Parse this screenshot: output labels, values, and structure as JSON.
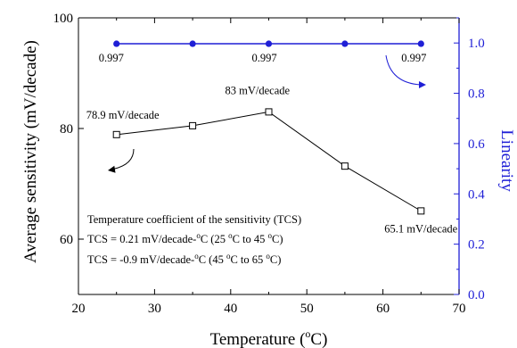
{
  "chart_data": {
    "type": "line",
    "x": [
      25,
      35,
      45,
      55,
      65
    ],
    "xlabel": "Temperature (°C)",
    "xlabel_main": "Temperature (",
    "xlabel_sup": "o",
    "xlabel_end": "C)",
    "xlim": [
      20,
      70
    ],
    "xticks": [
      20,
      30,
      40,
      50,
      60,
      70
    ],
    "xtick_labels": [
      "20",
      "30",
      "40",
      "50",
      "60",
      "70"
    ],
    "ylabel_left": "Average sensitivity (mV/decade)",
    "ylim_left": [
      50,
      100
    ],
    "yticks_left": [
      60,
      80,
      100
    ],
    "ytick_labels_left": [
      "60",
      "80",
      "100"
    ],
    "ylabel_right": "Linearity",
    "ylim_right": [
      0,
      1.1
    ],
    "yticks_right": [
      0.0,
      0.2,
      0.4,
      0.6,
      0.8,
      1.0
    ],
    "ytick_labels_right": [
      "0.0",
      "0.2",
      "0.4",
      "0.6",
      "0.8",
      "1.0"
    ],
    "grid": false,
    "series": [
      {
        "axis": "left",
        "marker": "open-square",
        "color": "#000000",
        "values": [
          78.9,
          80.5,
          83,
          73.2,
          65.1
        ]
      },
      {
        "axis": "right",
        "marker": "filled-circle",
        "color": "#1f1fd6",
        "values": [
          0.997,
          0.997,
          0.997,
          0.997,
          0.997
        ]
      }
    ],
    "point_labels": [
      {
        "series": 0,
        "index": 0,
        "text": "78.9 mV/decade"
      },
      {
        "series": 0,
        "index": 2,
        "text": "83 mV/decade"
      },
      {
        "series": 0,
        "index": 4,
        "text": "65.1 mV/decade"
      },
      {
        "series": 1,
        "index": 0,
        "text": "0.997"
      },
      {
        "series": 1,
        "index": 2,
        "text": "0.997"
      },
      {
        "series": 1,
        "index": 4,
        "text": "0.997"
      }
    ],
    "annotation": {
      "line1": "Temperature coefficient of the sensitivity (TCS)",
      "line2": [
        {
          "t": "TCS = 0.21 mV/decade-"
        },
        {
          "t": "o",
          "sup": true
        },
        {
          "t": "C (25 "
        },
        {
          "t": "o",
          "sup": true
        },
        {
          "t": "C to 45 "
        },
        {
          "t": "o",
          "sup": true
        },
        {
          "t": "C)"
        }
      ],
      "line3": [
        {
          "t": "TCS = -0.9 mV/decade-"
        },
        {
          "t": "o",
          "sup": true
        },
        {
          "t": "C  (45 "
        },
        {
          "t": "o",
          "sup": true
        },
        {
          "t": "C to 65 "
        },
        {
          "t": "o",
          "sup": true
        },
        {
          "t": "C)"
        }
      ]
    }
  },
  "colors": {
    "axis_left": "#000000",
    "axis_right": "#1f1fd6"
  }
}
